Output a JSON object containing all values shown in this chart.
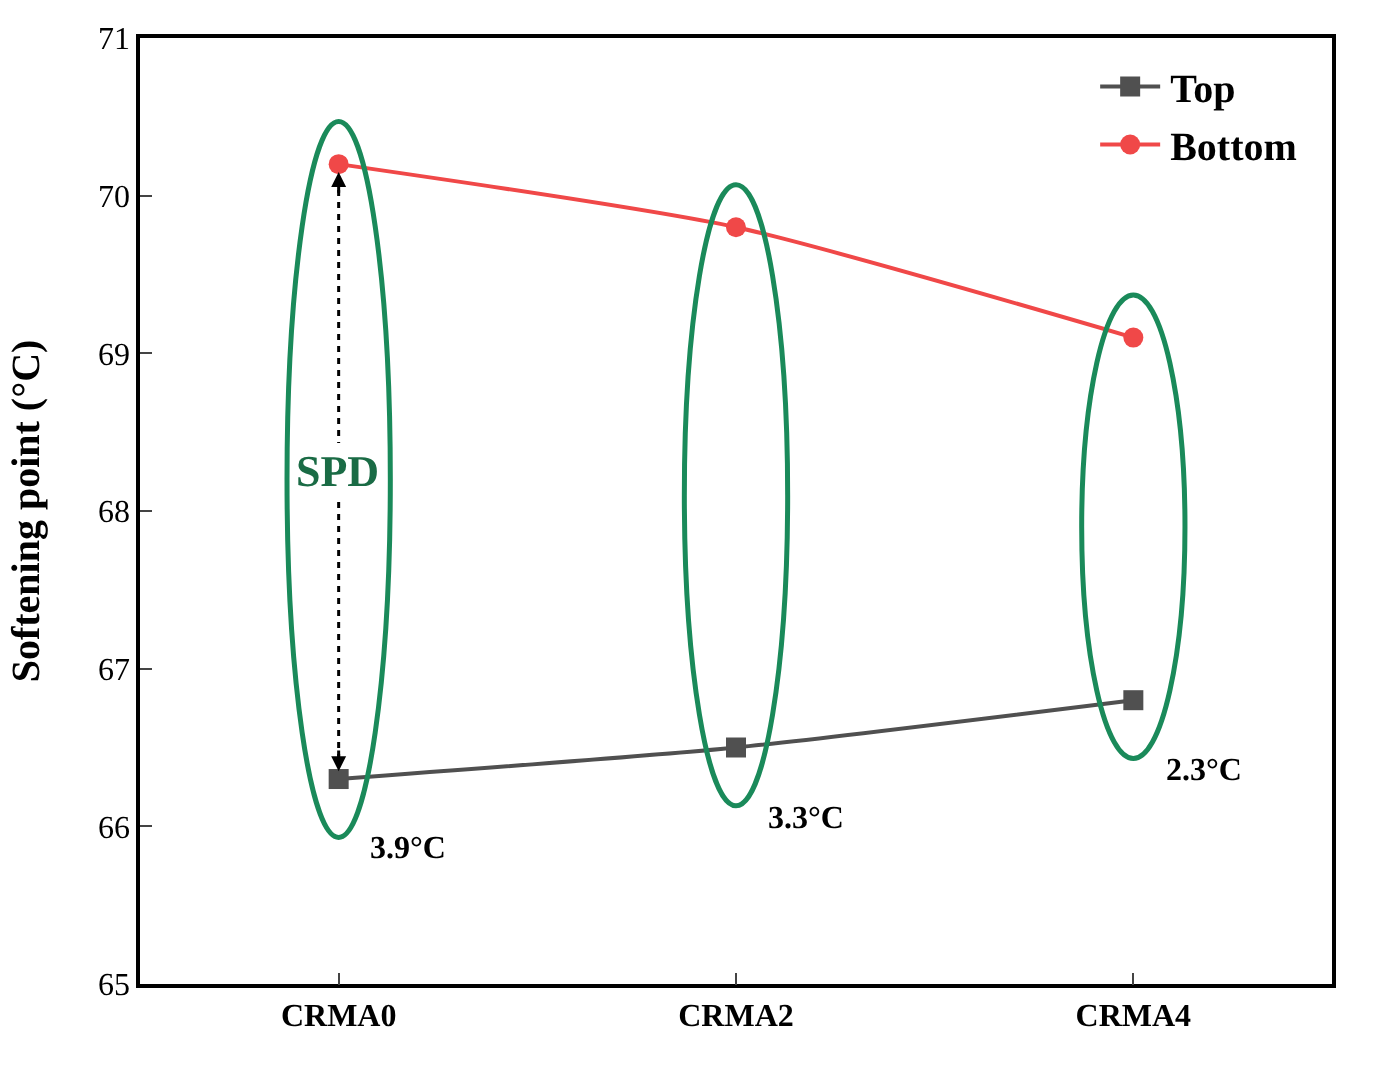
{
  "chart_data": {
    "type": "line",
    "ylabel": "Softening point (°C)",
    "categories": [
      "CRMA0",
      "CRMA2",
      "CRMA4"
    ],
    "series": [
      {
        "name": "Top",
        "color": "#505050",
        "values": [
          66.3,
          66.5,
          66.8
        ],
        "marker": "square"
      },
      {
        "name": "Bottom",
        "color": "#f04848",
        "values": [
          70.2,
          69.8,
          69.1
        ],
        "marker": "circle"
      }
    ],
    "ylim": [
      65,
      71
    ],
    "yticks": [
      65,
      66,
      67,
      68,
      69,
      70,
      71
    ],
    "grid": false,
    "legend": "top right",
    "annotations": [
      "SPD",
      "3.9°C",
      "3.3°C",
      "2.3°C"
    ]
  }
}
